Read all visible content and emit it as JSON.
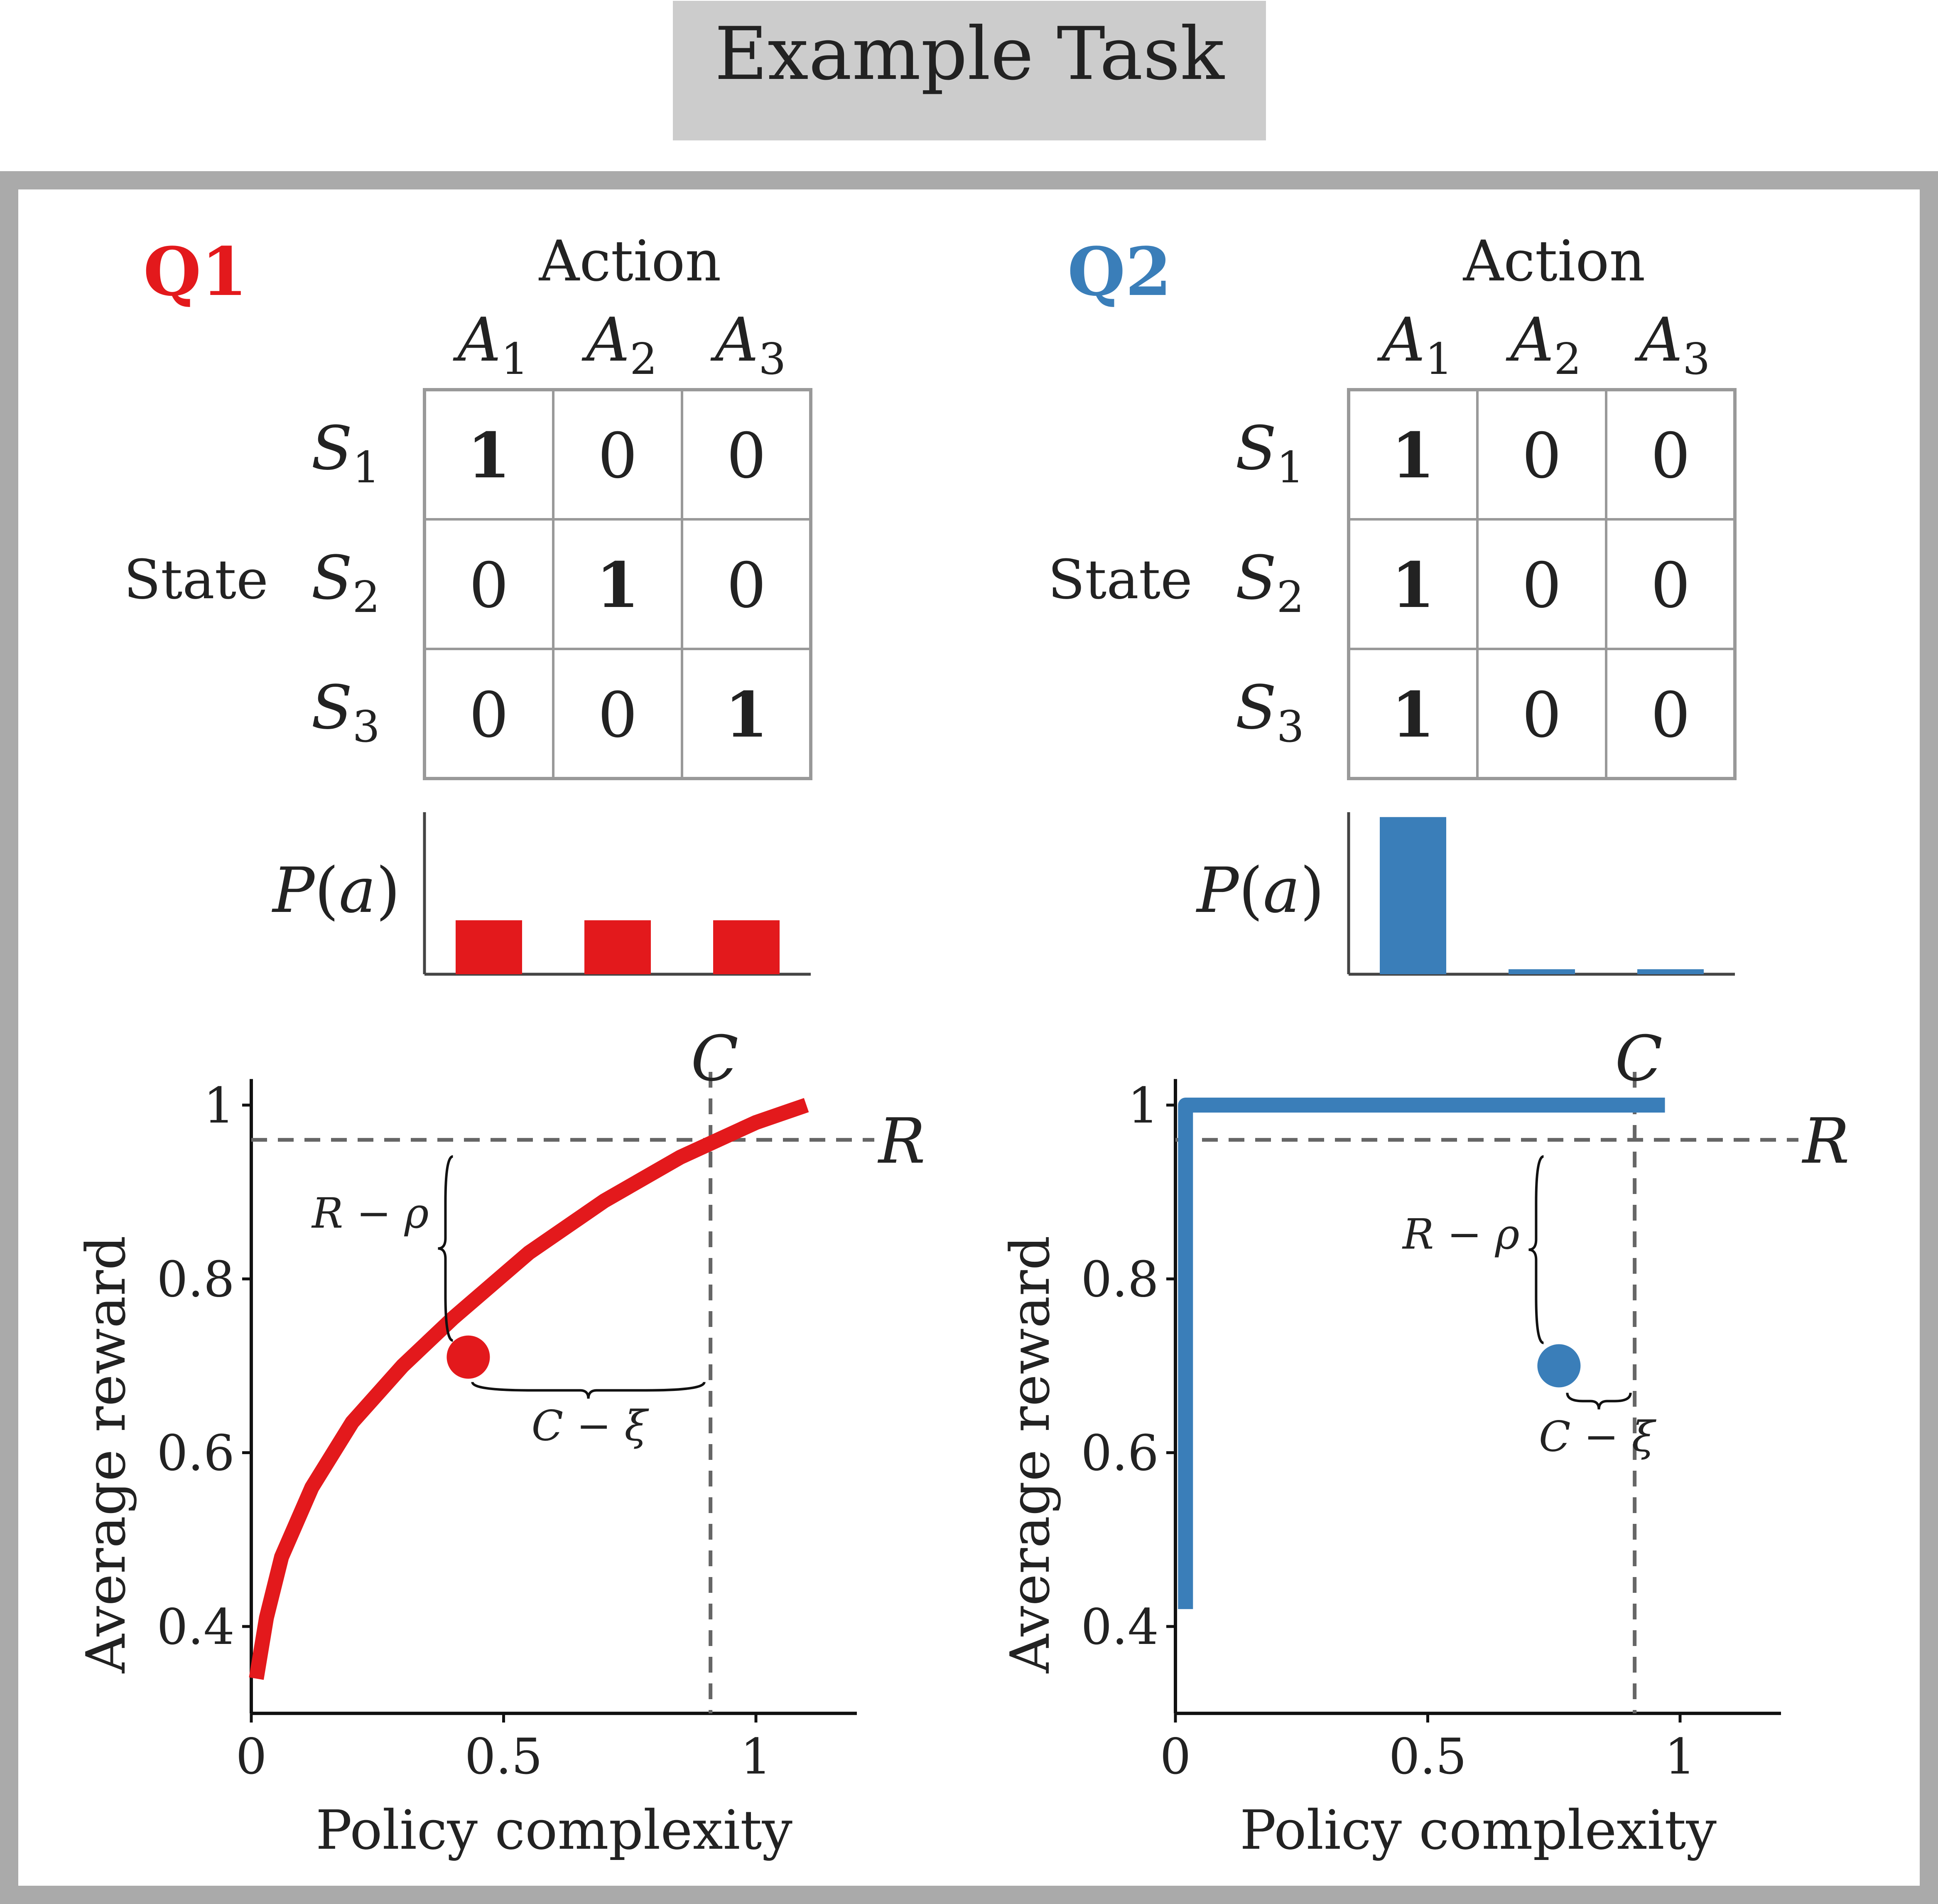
{
  "title": "Example Task",
  "colors": {
    "q1": "#e3191c",
    "q2": "#3a7eb9",
    "frame": "#aaaaaa",
    "title_bg": "#cccccc",
    "grid": "#999999",
    "dashed": "#666666",
    "text": "#222222"
  },
  "panels": [
    {
      "id": "q1",
      "label": "Q1",
      "table": {
        "column_header": "Action",
        "row_header": "State",
        "columns": [
          "A",
          "A",
          "A"
        ],
        "column_subs": [
          "1",
          "2",
          "3"
        ],
        "rows": [
          "S",
          "S",
          "S"
        ],
        "row_subs": [
          "1",
          "2",
          "3"
        ],
        "cells": [
          [
            "1",
            "0",
            "0"
          ],
          [
            "0",
            "1",
            "0"
          ],
          [
            "0",
            "0",
            "1"
          ]
        ],
        "bold": [
          [
            true,
            false,
            false
          ],
          [
            false,
            true,
            false
          ],
          [
            false,
            false,
            true
          ]
        ]
      },
      "marginal": {
        "label_p": "P",
        "label_a": "a",
        "values": [
          0.333,
          0.333,
          0.333
        ]
      },
      "chart_data": {
        "type": "line",
        "xlabel": "Policy complexity",
        "ylabel": "Average reward",
        "xlim": [
          0,
          1.2
        ],
        "ylim": [
          0.3,
          1.03
        ],
        "xticks": [
          "0",
          "0.5",
          "1"
        ],
        "yticks": [
          "0.4",
          "0.6",
          "0.8",
          "1"
        ],
        "curve": {
          "x": [
            0.01,
            0.03,
            0.06,
            0.12,
            0.2,
            0.3,
            0.4,
            0.55,
            0.7,
            0.85,
            1.0,
            1.1
          ],
          "y": [
            0.34,
            0.41,
            0.48,
            0.56,
            0.635,
            0.7,
            0.755,
            0.83,
            0.89,
            0.94,
            0.98,
            1.0
          ]
        },
        "point": {
          "x": 0.43,
          "y": 0.71
        },
        "R": 0.96,
        "C": 0.91,
        "R_label": "R",
        "C_label": "C",
        "r_gap_label": "R − ρ",
        "c_gap_label": "C − ξ"
      }
    },
    {
      "id": "q2",
      "label": "Q2",
      "table": {
        "column_header": "Action",
        "row_header": "State",
        "columns": [
          "A",
          "A",
          "A"
        ],
        "column_subs": [
          "1",
          "2",
          "3"
        ],
        "rows": [
          "S",
          "S",
          "S"
        ],
        "row_subs": [
          "1",
          "2",
          "3"
        ],
        "cells": [
          [
            "1",
            "0",
            "0"
          ],
          [
            "1",
            "0",
            "0"
          ],
          [
            "1",
            "0",
            "0"
          ]
        ],
        "bold": [
          [
            true,
            false,
            false
          ],
          [
            true,
            false,
            false
          ],
          [
            true,
            false,
            false
          ]
        ]
      },
      "marginal": {
        "label_p": "P",
        "label_a": "a",
        "values": [
          0.97,
          0.015,
          0.015
        ]
      },
      "chart_data": {
        "type": "line",
        "xlabel": "Policy complexity",
        "ylabel": "Average reward",
        "xlim": [
          0,
          1.2
        ],
        "ylim": [
          0.3,
          1.03
        ],
        "xticks": [
          "0",
          "0.5",
          "1"
        ],
        "yticks": [
          "0.4",
          "0.6",
          "0.8",
          "1"
        ],
        "curve": {
          "x": [
            0.02,
            0.02,
            0.97
          ],
          "y": [
            0.42,
            1.0,
            1.0
          ]
        },
        "point": {
          "x": 0.76,
          "y": 0.7
        },
        "R": 0.96,
        "C": 0.91,
        "R_label": "R",
        "C_label": "C",
        "r_gap_label": "R − ρ",
        "c_gap_label": "C − ξ"
      }
    }
  ]
}
